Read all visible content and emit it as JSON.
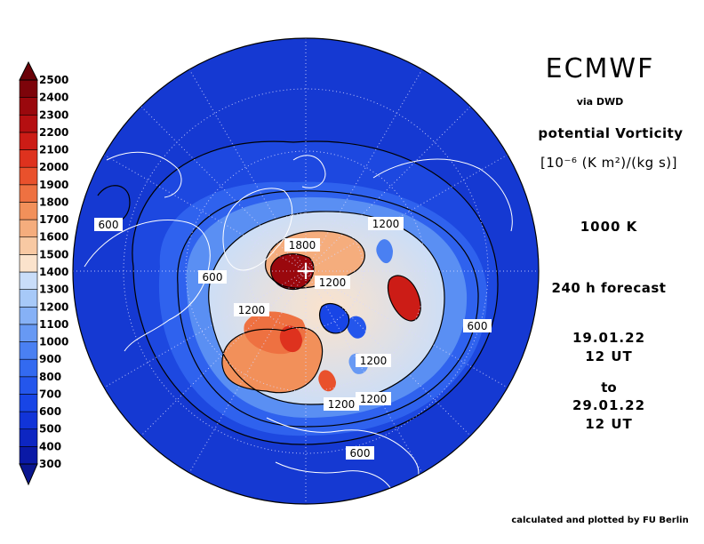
{
  "header": {
    "source": "ECMWF",
    "via": "via DWD",
    "variable": "potential Vorticity",
    "unit": "[10⁻⁶ (K m²)/(kg s)]",
    "level": "1000 K",
    "forecast": "240 h forecast",
    "valid_from_date": "19.01.22",
    "valid_from_hour": "12 UT",
    "to_word": "to",
    "valid_to_date": "29.01.22",
    "valid_to_hour": "12 UT"
  },
  "footer": {
    "credit": "calculated and plotted by FU Berlin"
  },
  "colorbar": {
    "levels": [
      "300",
      "400",
      "500",
      "600",
      "700",
      "800",
      "900",
      "1000",
      "1100",
      "1200",
      "1300",
      "1400",
      "1500",
      "1600",
      "1700",
      "1800",
      "1900",
      "2000",
      "2100",
      "2200",
      "2300",
      "2400",
      "2500"
    ],
    "colors": [
      "#0a19a6",
      "#0d26c2",
      "#1134d8",
      "#1845e6",
      "#2456ec",
      "#336af0",
      "#4a80f2",
      "#6799f4",
      "#86b1f6",
      "#a7c9f8",
      "#c9ddf9",
      "#fbe3cc",
      "#f8c9a3",
      "#f5ad7d",
      "#f2905a",
      "#ee7141",
      "#e9512c",
      "#de321e",
      "#cc1c16",
      "#b50f11",
      "#9a080d",
      "#7d040a"
    ],
    "under_color": "#0a1690",
    "over_color": "#6a0208"
  },
  "map": {
    "projection": "north-polar-stereographic",
    "background_color": "#1d48e0",
    "contour_labels": [
      "600",
      "600",
      "1800",
      "1200",
      "1200",
      "600",
      "1200",
      "1200",
      "1200",
      "1200",
      "600"
    ]
  }
}
